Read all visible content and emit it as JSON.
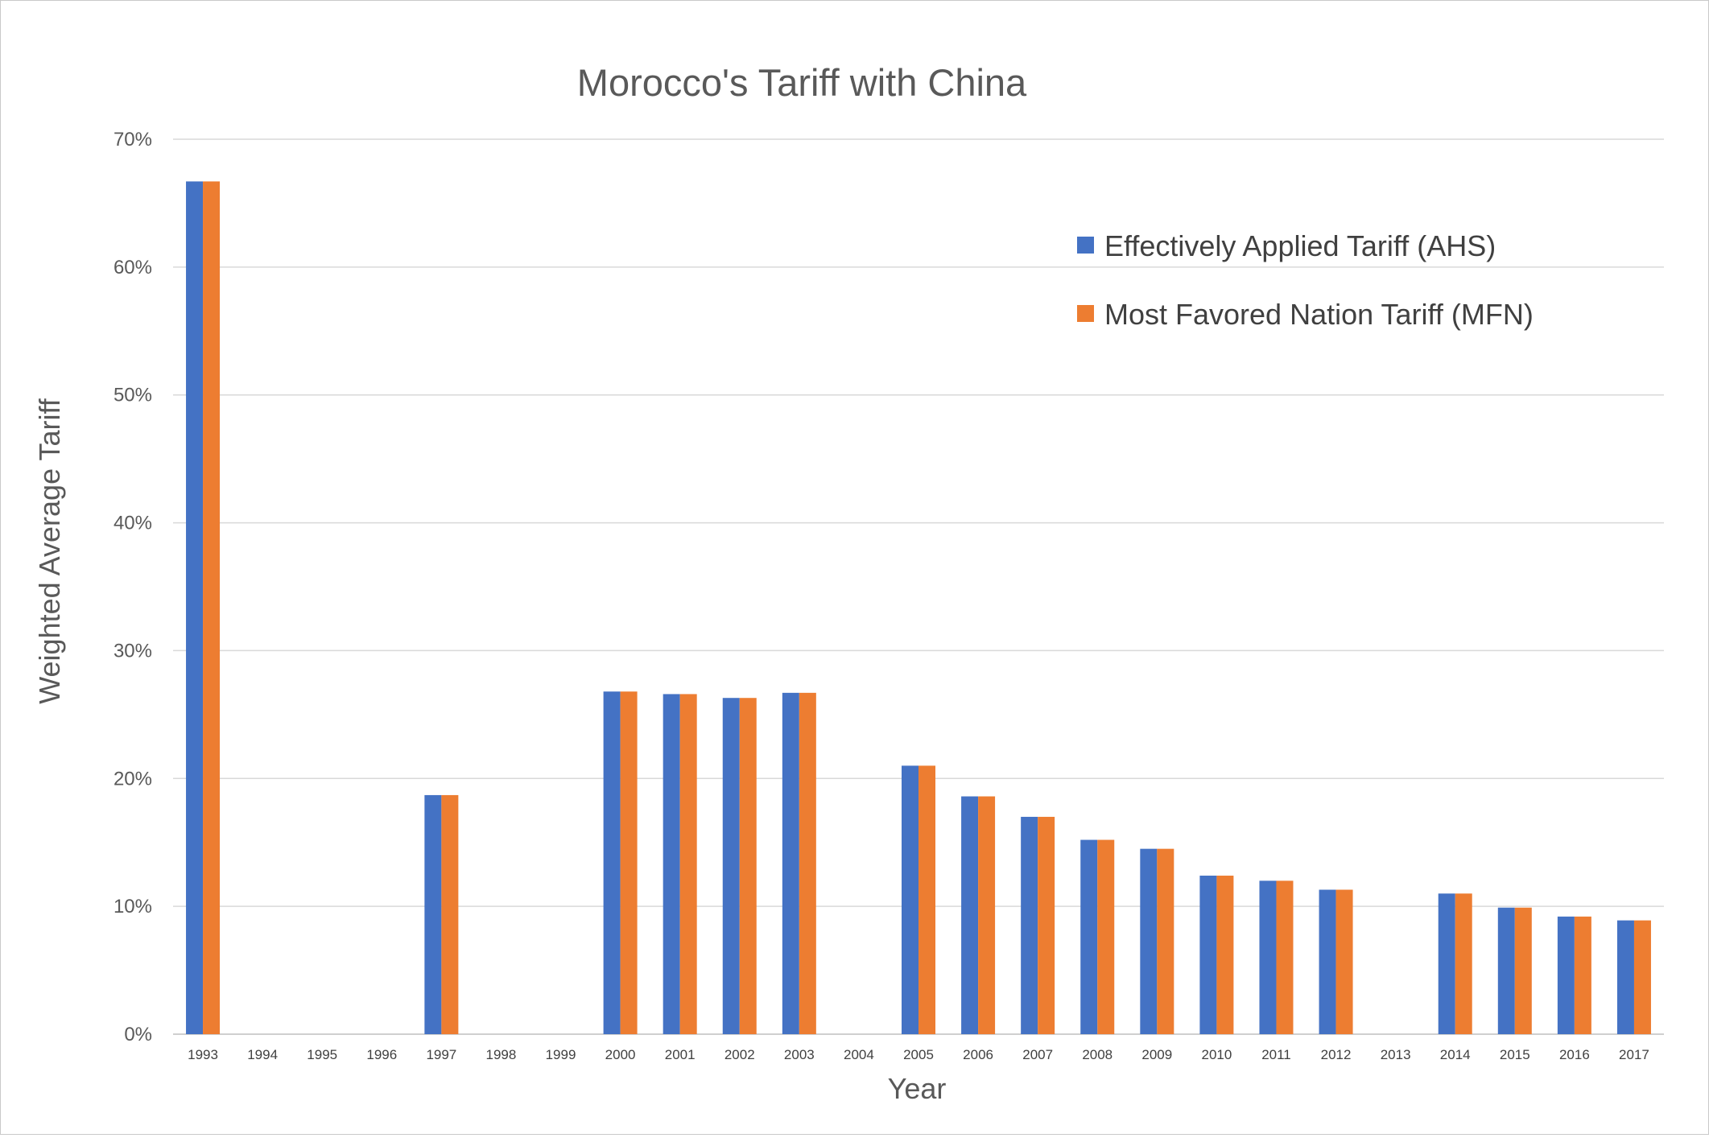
{
  "chart_data": {
    "type": "bar",
    "title": "Morocco's Tariff with China",
    "xlabel": "Year",
    "ylabel": "Weighted Average Tariff",
    "ylim": [
      0,
      70
    ],
    "yticks": [
      "0%",
      "10%",
      "20%",
      "30%",
      "40%",
      "50%",
      "60%",
      "70%"
    ],
    "grid": true,
    "legend_position": "top-right",
    "categories": [
      "1993",
      "1994",
      "1995",
      "1996",
      "1997",
      "1998",
      "1999",
      "2000",
      "2001",
      "2002",
      "2003",
      "2004",
      "2005",
      "2006",
      "2007",
      "2008",
      "2009",
      "2010",
      "2011",
      "2012",
      "2013",
      "2014",
      "2015",
      "2016",
      "2017"
    ],
    "series": [
      {
        "name": "Effectively Applied Tariff (AHS)",
        "color": "#4472C4",
        "values": [
          66.7,
          null,
          null,
          null,
          18.7,
          null,
          null,
          26.8,
          26.6,
          26.3,
          26.7,
          null,
          21.0,
          18.6,
          17.0,
          15.2,
          14.5,
          12.4,
          12.0,
          11.3,
          null,
          11.0,
          9.9,
          9.2,
          8.9
        ]
      },
      {
        "name": "Most Favored Nation Tariff (MFN)",
        "color": "#ED7D31",
        "values": [
          66.7,
          null,
          null,
          null,
          18.7,
          null,
          null,
          26.8,
          26.6,
          26.3,
          26.7,
          null,
          21.0,
          18.6,
          17.0,
          15.2,
          14.5,
          12.4,
          12.0,
          11.3,
          null,
          11.0,
          9.9,
          9.2,
          8.9
        ]
      }
    ]
  }
}
